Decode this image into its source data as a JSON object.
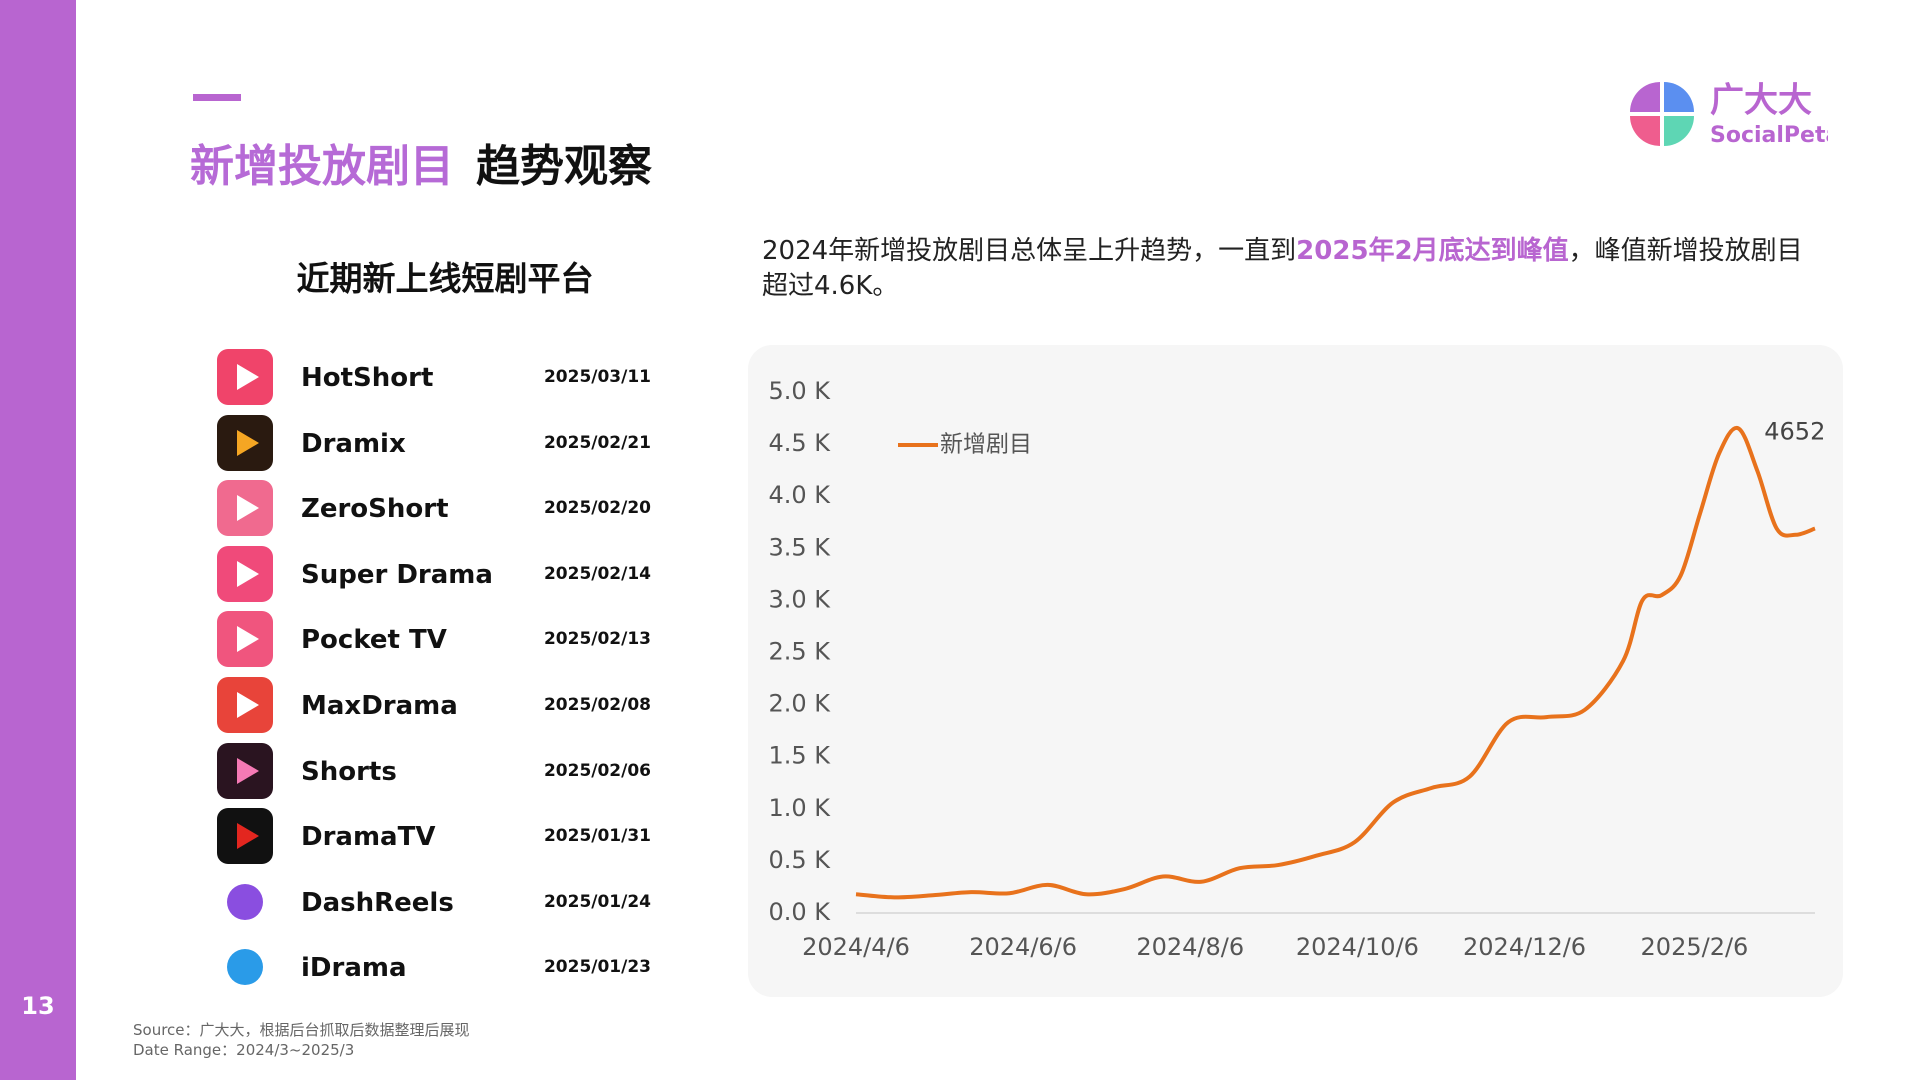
{
  "page_number": "13",
  "logo": {
    "name": "广大大",
    "brand": "SocialPeta"
  },
  "header": {
    "title_highlight": "新增投放剧目",
    "title_rest": "趋势观察"
  },
  "platforms": {
    "title": "近期新上线短剧平台",
    "items": [
      {
        "name": "HotShort",
        "date": "2025/03/11"
      },
      {
        "name": "Dramix",
        "date": "2025/02/21"
      },
      {
        "name": "ZeroShort",
        "date": "2025/02/20"
      },
      {
        "name": "Super Drama",
        "date": "2025/02/14"
      },
      {
        "name": "Pocket TV",
        "date": "2025/02/13"
      },
      {
        "name": "MaxDrama",
        "date": "2025/02/08"
      },
      {
        "name": "Shorts",
        "date": "2025/02/06"
      },
      {
        "name": "DramaTV",
        "date": "2025/01/31"
      },
      {
        "name": "DashReels",
        "date": "2025/01/24"
      },
      {
        "name": "iDrama",
        "date": "2025/01/23"
      }
    ]
  },
  "description": [
    "2024年新增投放剧目总体呈上升趋势，一直到",
    "2025年2月底达到峰值",
    "，峰值新增投放剧目超过4.6K。"
  ],
  "source": [
    "Source：广大大，根据后台抓取后数据整理后展现",
    "Date Range：2024/3~2025/3"
  ],
  "chart_data": {
    "type": "line",
    "x": [
      "2024/4/6",
      "2024/4/20",
      "2024/5/4",
      "2024/5/18",
      "2024/6/1",
      "2024/6/15",
      "2024/6/29",
      "2024/7/13",
      "2024/7/27",
      "2024/8/10",
      "2024/8/24",
      "2024/9/7",
      "2024/9/21",
      "2024/10/5",
      "2024/10/19",
      "2024/11/2",
      "2024/11/16",
      "2024/11/30",
      "2024/12/14",
      "2024/12/28",
      "2025/1/11",
      "2025/1/18",
      "2025/1/25",
      "2025/2/1",
      "2025/2/8",
      "2025/2/15",
      "2025/2/22",
      "2025/3/1",
      "2025/3/8",
      "2025/3/15",
      "2025/3/22"
    ],
    "series": [
      {
        "name": "新增剧目",
        "color": "#e8721c",
        "values": [
          180,
          150,
          170,
          200,
          190,
          270,
          180,
          230,
          350,
          300,
          430,
          460,
          550,
          680,
          1060,
          1200,
          1310,
          1830,
          1880,
          1950,
          2420,
          3000,
          3050,
          3240,
          3830,
          4410,
          4652,
          4240,
          3690,
          3630,
          3690
        ]
      }
    ],
    "xlim": [
      "2024/4/6",
      "2025/3/22"
    ],
    "xticks": [
      "2024/4/6",
      "2024/6/6",
      "2024/8/6",
      "2024/10/6",
      "2024/12/6",
      "2025/2/6"
    ],
    "ylim": [
      0,
      5000
    ],
    "yticks": [
      {
        "value": 0,
        "label": "0.0 K"
      },
      {
        "value": 500,
        "label": "0.5 K"
      },
      {
        "value": 1000,
        "label": "1.0 K"
      },
      {
        "value": 1500,
        "label": "1.5 K"
      },
      {
        "value": 2000,
        "label": "2.0 K"
      },
      {
        "value": 2500,
        "label": "2.5 K"
      },
      {
        "value": 3000,
        "label": "3.0 K"
      },
      {
        "value": 3500,
        "label": "3.5 K"
      },
      {
        "value": 4000,
        "label": "4.0 K"
      },
      {
        "value": 4500,
        "label": "4.5 K"
      },
      {
        "value": 5000,
        "label": "5.0 K"
      }
    ],
    "peak_label_index": 26,
    "legend": "upper left",
    "grid": false
  }
}
